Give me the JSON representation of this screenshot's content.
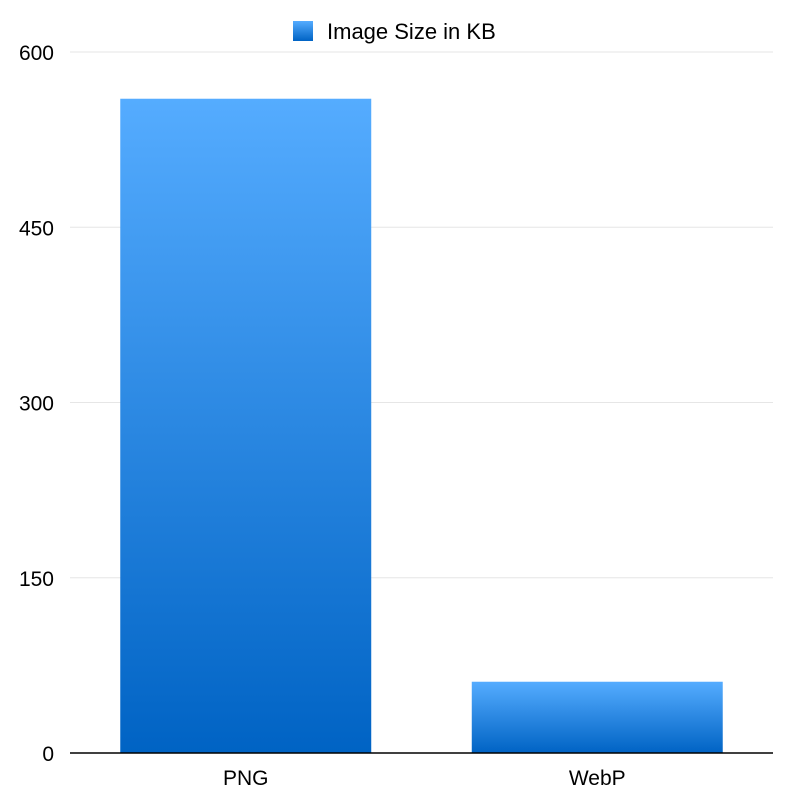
{
  "chart_data": {
    "type": "bar",
    "categories": [
      "PNG",
      "WebP"
    ],
    "series": [
      {
        "name": "Image Size in KB",
        "values": [
          560,
          61
        ],
        "color": "#2a8ae8"
      }
    ],
    "ylim": [
      0,
      600
    ],
    "yticks": [
      0,
      150,
      300,
      450,
      600
    ],
    "grid": true,
    "legend_position": "top-center",
    "gradient": {
      "top": "#55acff",
      "bottom": "#0063c4"
    }
  }
}
